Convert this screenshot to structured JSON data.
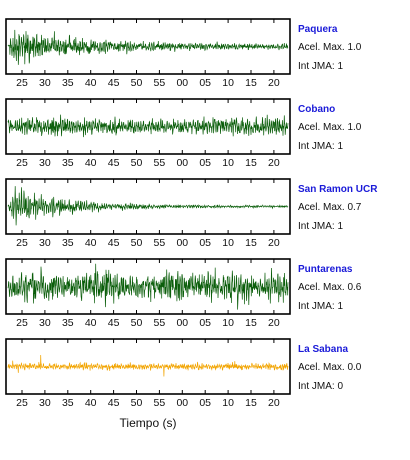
{
  "chart_data": {
    "type": "line",
    "xlabel": "Tiempo (s)",
    "x_tick_labels": [
      "25",
      "30",
      "35",
      "40",
      "45",
      "50",
      "55",
      "00",
      "05",
      "10",
      "15",
      "20"
    ],
    "accel_label": "Acel. Max.",
    "jma_label": "Int JMA:",
    "panels": [
      {
        "station": "Paquera",
        "accel_max": "1.0",
        "int_jma": "1",
        "color": "#0b5e0b",
        "envelope": "decay",
        "name_color": "#1a1ad8"
      },
      {
        "station": "Cobano",
        "accel_max": "1.0",
        "int_jma": "1",
        "color": "#0b5e0b",
        "envelope": "steady",
        "name_color": "#1a1ad8"
      },
      {
        "station": "San Ramon UCR",
        "accel_max": "0.7",
        "int_jma": "1",
        "color": "#0b5e0b",
        "envelope": "decay-strong",
        "name_color": "#1a1ad8"
      },
      {
        "station": "Puntarenas",
        "accel_max": "0.6",
        "int_jma": "1",
        "color": "#0b5e0b",
        "envelope": "noisy-full",
        "name_color": "#1a1ad8"
      },
      {
        "station": "La Sabana",
        "accel_max": "0.0",
        "int_jma": "0",
        "color": "#f2a400",
        "envelope": "noise",
        "name_color": "#1a1ad8"
      }
    ]
  }
}
